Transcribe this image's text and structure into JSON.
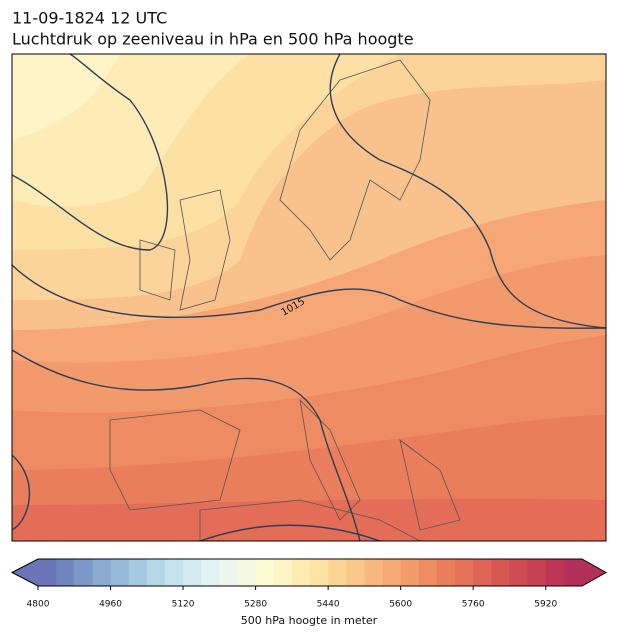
{
  "header": {
    "title_line1": "11-09-1824 12 UTC",
    "title_line2": "Luchtdruk op zeeniveau in hPa en 500 hPa hoogte"
  },
  "map": {
    "isobar_labels": [
      "1015"
    ]
  },
  "colorbar": {
    "label": "500 hPa hoogte in meter",
    "range": [
      4800,
      6000
    ],
    "ticks": [
      4800,
      4960,
      5120,
      5280,
      5440,
      5600,
      5760,
      5920
    ],
    "colors": [
      "#6b74b6",
      "#7186bf",
      "#7d98c8",
      "#89a9d1",
      "#97b9d9",
      "#a5c9e1",
      "#b4d7e8",
      "#c3e2ee",
      "#d2ebf2",
      "#e0f2f3",
      "#ecf6ee",
      "#f6f9e2",
      "#fdfbd3",
      "#fef5c5",
      "#feecb4",
      "#fde2a5",
      "#fcd596",
      "#fbc789",
      "#f9b87d",
      "#f7a973",
      "#f49b6a",
      "#f08c62",
      "#eb7e5c",
      "#e57157",
      "#de6454",
      "#d75752",
      "#cf4b52",
      "#c74054",
      "#be3656",
      "#b53058"
    ]
  }
}
